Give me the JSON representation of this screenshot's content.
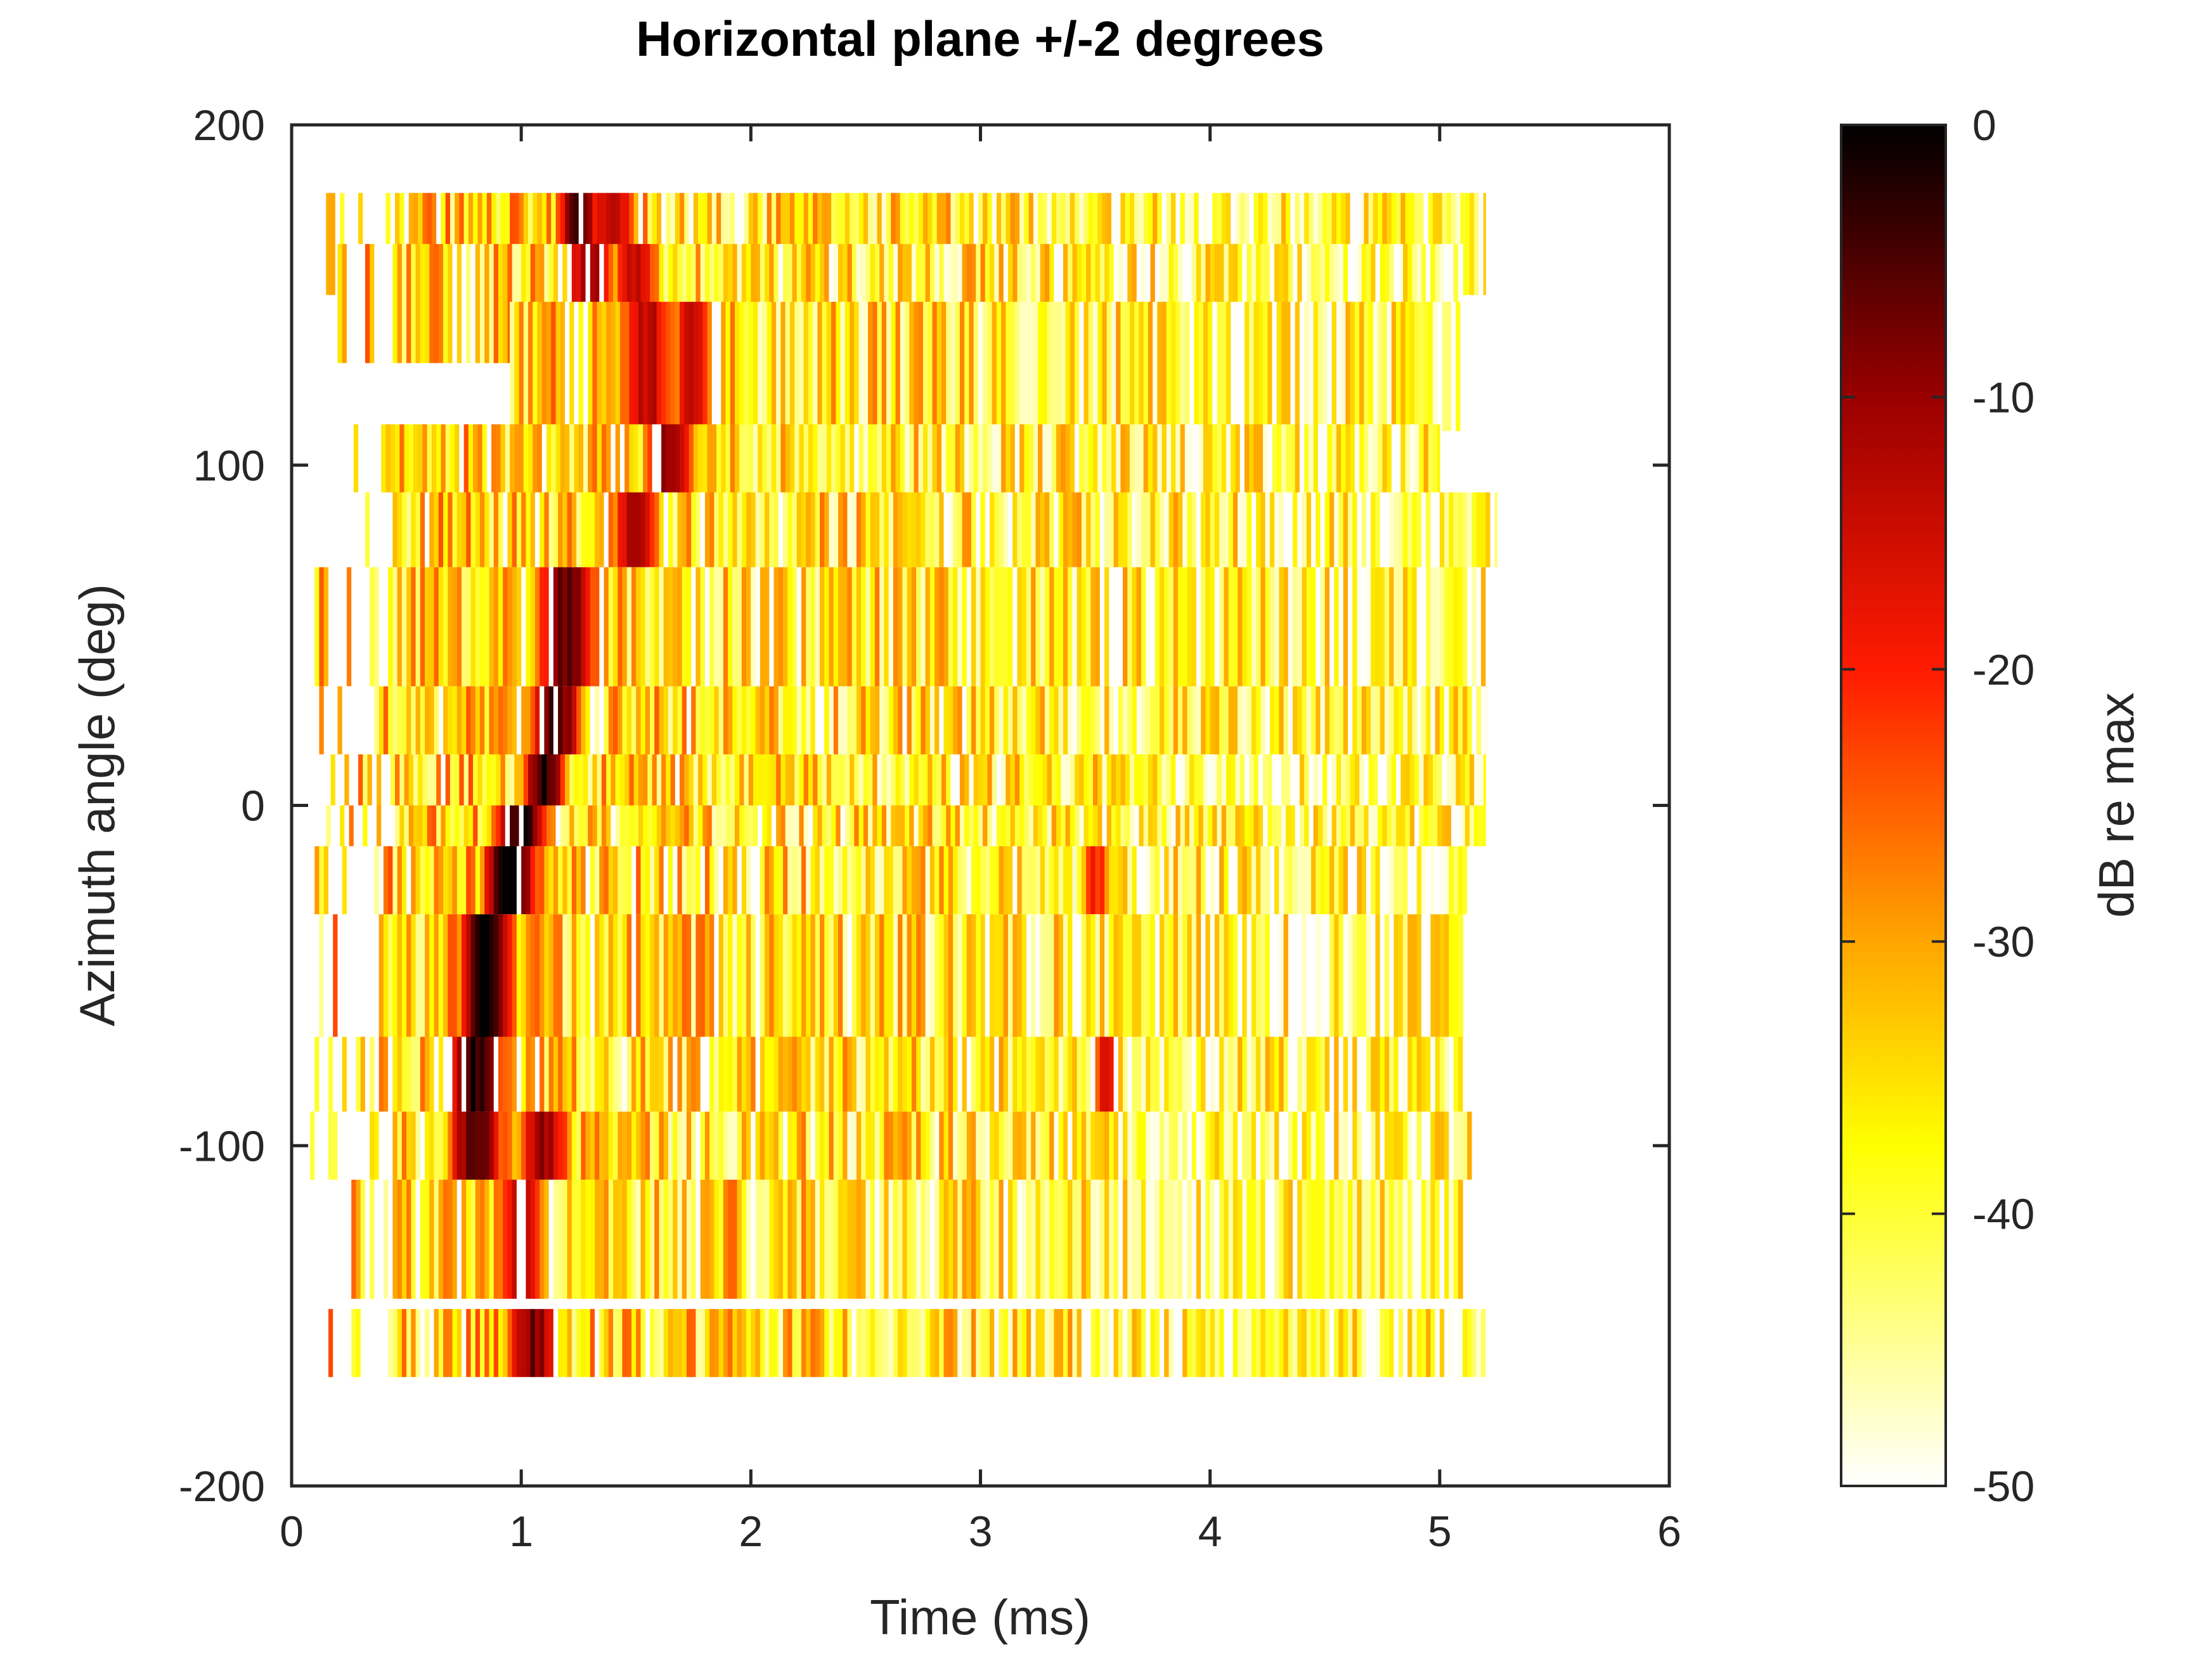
{
  "chart_data": {
    "type": "heatmap",
    "title": "Horizontal plane +/-2 degrees",
    "xlabel": "Time (ms)",
    "ylabel": "Azimuth angle (deg)",
    "xlim": [
      0,
      6
    ],
    "ylim": [
      -200,
      200
    ],
    "xticks": [
      0,
      1,
      2,
      3,
      4,
      5,
      6
    ],
    "yticks": [
      -200,
      -100,
      0,
      100,
      200
    ],
    "colorbar": {
      "label": "dB re max",
      "range": [
        -50,
        0
      ],
      "ticks": [
        0,
        -10,
        -20,
        -30,
        -40,
        -50
      ],
      "colormap": "hot"
    },
    "time_step_ms": 0.02,
    "rows": [
      {
        "az_min": 150,
        "az_max": 180,
        "t_start": 0.15,
        "t_end": 5.2,
        "peaks": [
          {
            "t": 1.25,
            "db": -4,
            "w": 0.12
          },
          {
            "t": 1.4,
            "db": -12,
            "w": 0.15
          }
        ]
      },
      {
        "az_min": 130,
        "az_max": 165,
        "t_start": 0.2,
        "t_end": 5.1,
        "peaks": [
          {
            "t": 1.3,
            "db": -10,
            "w": 0.15
          },
          {
            "t": 1.5,
            "db": -15,
            "w": 0.15
          }
        ]
      },
      {
        "az_min": 110,
        "az_max": 148,
        "t_start": 0.95,
        "t_end": 5.1,
        "peaks": [
          {
            "t": 1.55,
            "db": -13,
            "w": 0.18
          },
          {
            "t": 1.75,
            "db": -16,
            "w": 0.15
          }
        ]
      },
      {
        "az_min": 90,
        "az_max": 112,
        "t_start": 0.25,
        "t_end": 5.0,
        "peaks": [
          {
            "t": 1.65,
            "db": -9,
            "w": 0.15
          }
        ]
      },
      {
        "az_min": 70,
        "az_max": 92,
        "t_start": 0.2,
        "t_end": 5.25,
        "peaks": [
          {
            "t": 1.5,
            "db": -12,
            "w": 0.15
          }
        ]
      },
      {
        "az_min": 35,
        "az_max": 70,
        "t_start": 0.1,
        "t_end": 5.2,
        "peaks": [
          {
            "t": 1.2,
            "db": -7,
            "w": 0.18
          }
        ]
      },
      {
        "az_min": 15,
        "az_max": 35,
        "t_start": 0.1,
        "t_end": 5.2,
        "peaks": [
          {
            "t": 1.15,
            "db": -5,
            "w": 0.15
          }
        ]
      },
      {
        "az_min": 0,
        "az_max": 15,
        "t_start": 0.15,
        "t_end": 5.2,
        "peaks": [
          {
            "t": 1.1,
            "db": -2,
            "w": 0.12
          }
        ]
      },
      {
        "az_min": -12,
        "az_max": 0,
        "t_start": 0.15,
        "t_end": 5.2,
        "peaks": [
          {
            "t": 1.0,
            "db": -2,
            "w": 0.15
          }
        ]
      },
      {
        "az_min": -32,
        "az_max": -12,
        "t_start": 0.08,
        "t_end": 5.15,
        "peaks": [
          {
            "t": 0.95,
            "db": -1,
            "w": 0.15
          },
          {
            "t": 3.5,
            "db": -20,
            "w": 0.1
          }
        ]
      },
      {
        "az_min": -68,
        "az_max": -32,
        "t_start": 0.1,
        "t_end": 5.1,
        "peaks": [
          {
            "t": 0.85,
            "db": -1,
            "w": 0.15
          }
        ]
      },
      {
        "az_min": -90,
        "az_max": -68,
        "t_start": 0.1,
        "t_end": 5.1,
        "peaks": [
          {
            "t": 0.8,
            "db": -2,
            "w": 0.15
          },
          {
            "t": 3.55,
            "db": -18,
            "w": 0.1
          }
        ]
      },
      {
        "az_min": -110,
        "az_max": -90,
        "t_start": 0.08,
        "t_end": 5.15,
        "peaks": [
          {
            "t": 0.8,
            "db": -5,
            "w": 0.15
          },
          {
            "t": 1.1,
            "db": -10,
            "w": 0.15
          }
        ]
      },
      {
        "az_min": -145,
        "az_max": -110,
        "t_start": 0.2,
        "t_end": 5.1,
        "peaks": [
          {
            "t": 1.0,
            "db": -13,
            "w": 0.15
          }
        ]
      },
      {
        "az_min": -168,
        "az_max": -148,
        "t_start": 0.1,
        "t_end": 5.2,
        "peaks": [
          {
            "t": 1.05,
            "db": -8,
            "w": 0.15
          }
        ]
      }
    ]
  }
}
